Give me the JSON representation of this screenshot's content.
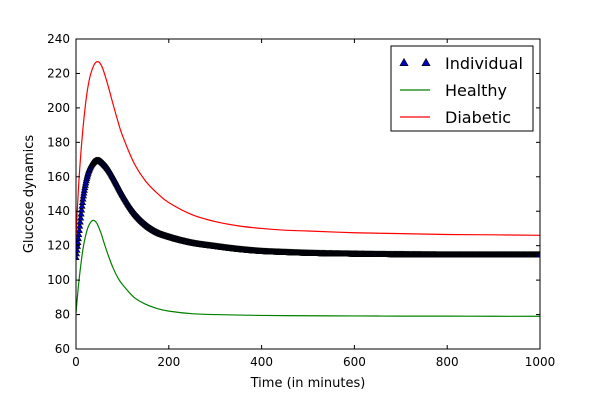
{
  "chart_data": {
    "type": "line",
    "title": "",
    "xlabel": "Time (in minutes)",
    "ylabel": "Glucose dynamics",
    "xlim": [
      0,
      1000
    ],
    "ylim": [
      60,
      240
    ],
    "xticks": [
      0,
      200,
      400,
      600,
      800,
      1000
    ],
    "yticks": [
      60,
      80,
      100,
      120,
      140,
      160,
      180,
      200,
      220,
      240
    ],
    "grid": false,
    "legend_position": "top-right",
    "series": [
      {
        "name": "Individual",
        "style": "markers",
        "marker": "triangle",
        "color": "#0000bf",
        "edge_color": "#000000",
        "x": [
          0,
          5,
          10,
          15,
          20,
          25,
          30,
          35,
          40,
          45,
          50,
          55,
          60,
          70,
          80,
          90,
          100,
          125,
          150,
          175,
          200,
          250,
          300,
          350,
          400,
          450,
          500,
          550,
          600,
          650,
          700,
          750,
          800,
          850,
          900,
          950,
          1000
        ],
        "y": [
          113,
          124,
          136,
          147,
          155,
          161,
          165,
          167.5,
          168.8,
          169.3,
          169.2,
          168.4,
          167.2,
          164,
          159.5,
          154.5,
          149.5,
          139,
          132,
          127.5,
          125,
          121.5,
          119.5,
          117.8,
          116.6,
          116,
          115.5,
          115.2,
          115,
          114.8,
          114.7,
          114.6,
          114.5,
          114.5,
          114.5,
          114.5,
          114.5
        ]
      },
      {
        "name": "Healthy",
        "style": "line",
        "color": "#008000",
        "x": [
          0,
          5,
          10,
          15,
          20,
          25,
          30,
          35,
          40,
          45,
          50,
          55,
          60,
          70,
          80,
          90,
          100,
          125,
          150,
          175,
          200,
          250,
          300,
          400,
          500,
          600,
          700,
          800,
          900,
          1000
        ],
        "y": [
          81,
          96,
          108,
          118,
          125,
          130,
          133,
          134.5,
          134.5,
          133,
          130,
          126.5,
          122,
          114,
          107,
          101.5,
          97.5,
          90,
          86,
          83.5,
          82,
          80.5,
          80,
          79.5,
          79.3,
          79.2,
          79.1,
          79.1,
          79,
          79
        ]
      },
      {
        "name": "Diabetic",
        "style": "line",
        "color": "#ff0000",
        "x": [
          0,
          5,
          10,
          15,
          20,
          25,
          30,
          35,
          40,
          45,
          50,
          55,
          60,
          70,
          80,
          90,
          100,
          125,
          150,
          175,
          200,
          250,
          300,
          350,
          400,
          450,
          500,
          600,
          700,
          800,
          900,
          1000
        ],
        "y": [
          125,
          152,
          172,
          188,
          201,
          211,
          218,
          222.5,
          225.5,
          226.8,
          226.5,
          224.5,
          221,
          212,
          202,
          192.5,
          184,
          168,
          157.5,
          150.5,
          145,
          138,
          134,
          131.5,
          130,
          129,
          128.5,
          127.5,
          127,
          126.5,
          126.3,
          126
        ]
      }
    ]
  }
}
